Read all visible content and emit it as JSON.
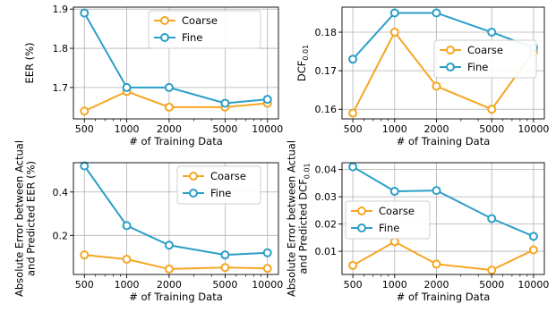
{
  "colors": {
    "coarse": "#f5a623",
    "fine": "#2b9fc7",
    "grid": "#b0b0b0"
  },
  "chart_data": [
    {
      "type": "line",
      "xscale": "log",
      "grid": true,
      "legend": "top-right",
      "x": [
        500,
        1000,
        2000,
        5000,
        10000
      ],
      "xticks": [
        "500",
        "1000",
        "2000",
        "5000",
        "10000"
      ],
      "xlabel": "# of Training Data",
      "ylabel": {
        "lines": [
          "EER (%)"
        ]
      },
      "ylim": [
        1.62,
        1.905
      ],
      "yticks": [
        1.7,
        1.8,
        1.9
      ],
      "ytick_labels": [
        "1.7",
        "1.8",
        "1.9"
      ],
      "series": [
        {
          "name": "Coarse",
          "color_key": "coarse",
          "values": [
            1.64,
            1.69,
            1.65,
            1.65,
            1.66
          ]
        },
        {
          "name": "Fine",
          "color_key": "fine",
          "values": [
            1.89,
            1.7,
            1.7,
            1.66,
            1.67
          ]
        }
      ]
    },
    {
      "type": "line",
      "xscale": "log",
      "grid": true,
      "legend": "center-right",
      "x": [
        500,
        1000,
        2000,
        5000,
        10000
      ],
      "xticks": [
        "500",
        "1000",
        "2000",
        "5000",
        "10000"
      ],
      "xlabel": "# of Training Data",
      "ylabel": {
        "lines": [
          "DCF"
        ],
        "sub": "0.01"
      },
      "ylim": [
        0.1575,
        0.1865
      ],
      "yticks": [
        0.16,
        0.17,
        0.18
      ],
      "ytick_labels": [
        "0.16",
        "0.17",
        "0.18"
      ],
      "series": [
        {
          "name": "Coarse",
          "color_key": "coarse",
          "values": [
            0.159,
            0.18,
            0.166,
            0.16,
            0.175
          ]
        },
        {
          "name": "Fine",
          "color_key": "fine",
          "values": [
            0.173,
            0.185,
            0.185,
            0.18,
            0.176
          ]
        }
      ]
    },
    {
      "type": "line",
      "xscale": "log",
      "grid": true,
      "legend": "top-right",
      "x": [
        500,
        1000,
        2000,
        5000,
        10000
      ],
      "xticks": [
        "500",
        "1000",
        "2000",
        "5000",
        "10000"
      ],
      "xlabel": "# of Training Data",
      "ylabel": {
        "lines": [
          "Absolute Error between Actual",
          "and Predicted EER (%)"
        ]
      },
      "ylim": [
        0.02,
        0.535
      ],
      "yticks": [
        0.2,
        0.4
      ],
      "ytick_labels": [
        "0.2",
        "0.4"
      ],
      "series": [
        {
          "name": "Coarse",
          "color_key": "coarse",
          "values": [
            0.11,
            0.09,
            0.045,
            0.052,
            0.048
          ]
        },
        {
          "name": "Fine",
          "color_key": "fine",
          "values": [
            0.52,
            0.245,
            0.155,
            0.11,
            0.12
          ]
        }
      ]
    },
    {
      "type": "line",
      "xscale": "log",
      "grid": true,
      "legend": "center-left",
      "x": [
        500,
        1000,
        2000,
        5000,
        10000
      ],
      "xticks": [
        "500",
        "1000",
        "2000",
        "5000",
        "10000"
      ],
      "xlabel": "# of Training Data",
      "ylabel": {
        "lines": [
          "Absolute Error between Actual",
          "and Predicted DCF"
        ],
        "sub": "0.01"
      },
      "ylim": [
        0.0015,
        0.0425
      ],
      "yticks": [
        0.01,
        0.02,
        0.03,
        0.04
      ],
      "ytick_labels": [
        "0.01",
        "0.02",
        "0.03",
        "0.04"
      ],
      "series": [
        {
          "name": "Coarse",
          "color_key": "coarse",
          "values": [
            0.0048,
            0.0135,
            0.0053,
            0.0031,
            0.0105
          ]
        },
        {
          "name": "Fine",
          "color_key": "fine",
          "values": [
            0.041,
            0.032,
            0.0323,
            0.022,
            0.0155
          ]
        }
      ]
    }
  ]
}
